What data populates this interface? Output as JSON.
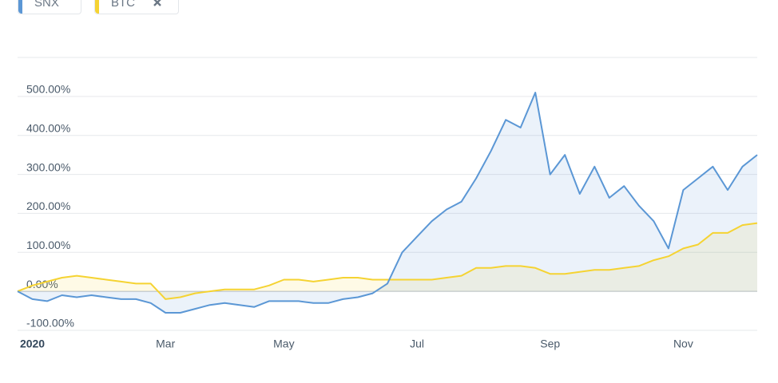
{
  "chart_data": {
    "type": "line",
    "categories": [
      null,
      "2020",
      null,
      null,
      null,
      null,
      null,
      null,
      null,
      null,
      "Mar",
      null,
      null,
      null,
      null,
      null,
      null,
      null,
      "May",
      null,
      null,
      null,
      null,
      null,
      null,
      null,
      null,
      "Jul",
      null,
      null,
      null,
      null,
      null,
      null,
      null,
      null,
      "Sep",
      null,
      null,
      null,
      null,
      null,
      null,
      null,
      null,
      "Nov",
      null,
      null,
      null,
      null,
      null
    ],
    "series": [
      {
        "name": "SNX",
        "color": "#5b97d5",
        "values": [
          0,
          -20,
          -25,
          -10,
          -15,
          -10,
          -15,
          -20,
          -20,
          -30,
          -55,
          -55,
          -45,
          -35,
          -30,
          -35,
          -40,
          -25,
          -25,
          -25,
          -30,
          -30,
          -20,
          -15,
          -5,
          20,
          100,
          140,
          180,
          210,
          230,
          290,
          360,
          440,
          420,
          510,
          300,
          350,
          250,
          320,
          240,
          270,
          220,
          180,
          110,
          260,
          290,
          320,
          260,
          320,
          350
        ]
      },
      {
        "name": "BTC",
        "color": "#f5d332",
        "values": [
          0,
          15,
          25,
          35,
          40,
          35,
          30,
          25,
          20,
          20,
          -20,
          -15,
          -5,
          0,
          5,
          5,
          5,
          15,
          30,
          30,
          25,
          30,
          35,
          35,
          30,
          30,
          30,
          30,
          30,
          35,
          40,
          60,
          60,
          65,
          65,
          60,
          45,
          45,
          50,
          55,
          55,
          60,
          65,
          80,
          90,
          110,
          120,
          150,
          150,
          170,
          175
        ]
      }
    ],
    "ylim": [
      -100,
      600
    ],
    "yticks": [
      {
        "value": -100,
        "label": "-100.00%"
      },
      {
        "value": 0,
        "label": "0.00%"
      },
      {
        "value": 100,
        "label": "100.00%"
      },
      {
        "value": 200,
        "label": "200.00%"
      },
      {
        "value": 300,
        "label": "300.00%"
      },
      {
        "value": 400,
        "label": "400.00%"
      },
      {
        "value": 500,
        "label": "500.00%"
      }
    ],
    "grid": true
  }
}
